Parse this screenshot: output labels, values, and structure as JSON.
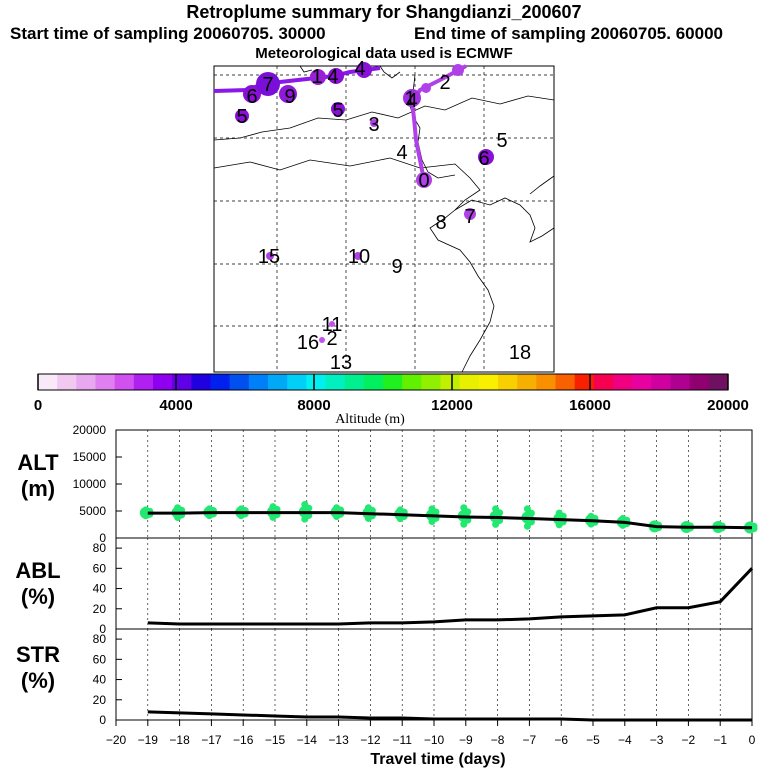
{
  "header": {
    "title": "Retroplume summary for Shangdianzi_200607",
    "start": "Start time of sampling 20060705. 30000",
    "end": "End time of sampling 20060705. 60000",
    "met": "Meteorological data used is ECMWF"
  },
  "colorbar": {
    "ticks": [
      "0",
      "4000",
      "8000",
      "12000",
      "16000",
      "20000"
    ],
    "label": "Altitude (m)",
    "colors": [
      "#f8e8f8",
      "#f0c8f0",
      "#e8a8f0",
      "#e080f0",
      "#d050f0",
      "#b020f0",
      "#9000f0",
      "#6000e8",
      "#2000e0",
      "#0020f0",
      "#0050f0",
      "#0080f8",
      "#00a8f8",
      "#00d0f8",
      "#00f0f0",
      "#00f0c0",
      "#00f090",
      "#00f060",
      "#20f020",
      "#60f000",
      "#90f000",
      "#c0f000",
      "#e8f000",
      "#f8f000",
      "#f8d000",
      "#f8b000",
      "#f89000",
      "#f86000",
      "#f82000",
      "#f80050",
      "#f00080",
      "#e800a0",
      "#d000a0",
      "#b00090",
      "#900070",
      "#701060"
    ]
  },
  "map": {
    "labels": [
      {
        "t": "5",
        "x": 242,
        "y": 116
      },
      {
        "t": "6",
        "x": 252,
        "y": 96
      },
      {
        "t": "7",
        "x": 268,
        "y": 84
      },
      {
        "t": "9",
        "x": 290,
        "y": 96
      },
      {
        "t": "1",
        "x": 317,
        "y": 76
      },
      {
        "t": "4",
        "x": 333,
        "y": 76
      },
      {
        "t": "5",
        "x": 338,
        "y": 110
      },
      {
        "t": "3",
        "x": 374,
        "y": 124
      },
      {
        "t": "4",
        "x": 360,
        "y": 68
      },
      {
        "t": "1",
        "x": 410,
        "y": 98
      },
      {
        "t": "4",
        "x": 412,
        "y": 100
      },
      {
        "t": "2",
        "x": 445,
        "y": 82
      },
      {
        "t": "4",
        "x": 402,
        "y": 152
      },
      {
        "t": "0",
        "x": 424,
        "y": 180
      },
      {
        "t": "5",
        "x": 502,
        "y": 140
      },
      {
        "t": "6",
        "x": 484,
        "y": 158
      },
      {
        "t": "7",
        "x": 470,
        "y": 216
      },
      {
        "t": "8",
        "x": 441,
        "y": 222
      },
      {
        "t": "15",
        "x": 269,
        "y": 256
      },
      {
        "t": "10",
        "x": 359,
        "y": 256
      },
      {
        "t": "9",
        "x": 397,
        "y": 266
      },
      {
        "t": "11",
        "x": 332,
        "y": 324
      },
      {
        "t": "16",
        "x": 308,
        "y": 342
      },
      {
        "t": "2",
        "x": 332,
        "y": 338
      },
      {
        "t": "13",
        "x": 341,
        "y": 362
      },
      {
        "t": "18",
        "x": 520,
        "y": 352
      }
    ]
  },
  "panels": {
    "alt": {
      "label1": "ALT",
      "label2": "(m)",
      "yticks": [
        "20000",
        "15000",
        "10000",
        "5000",
        "0"
      ]
    },
    "abl": {
      "label1": "ABL",
      "label2": "(%)",
      "yticks": [
        "80",
        "60",
        "40",
        "20",
        "0"
      ]
    },
    "str": {
      "label1": "STR",
      "label2": "(%)",
      "yticks": [
        "80",
        "60",
        "40",
        "20",
        "0"
      ]
    }
  },
  "xaxis": {
    "ticks": [
      "−20",
      "−19",
      "−18",
      "−17",
      "−16",
      "−15",
      "−14",
      "−13",
      "−12",
      "−11",
      "−10",
      "−9",
      "−8",
      "−7",
      "−6",
      "−5",
      "−4",
      "−3",
      "−2",
      "−1",
      "0"
    ],
    "label": "Travel time (days)"
  },
  "chart_data": {
    "type": "line",
    "title": "Retroplume summary for Shangdianzi_200607",
    "xlabel": "Travel time (days)",
    "x": [
      -19,
      -18,
      -17,
      -16,
      -15,
      -14,
      -13,
      -12,
      -11,
      -10,
      -9,
      -8,
      -7,
      -6,
      -5,
      -4,
      -3,
      -2,
      -1,
      0
    ],
    "xlim": [
      -20,
      0
    ],
    "series": [
      {
        "name": "ALT (m)",
        "ylim": [
          0,
          20000
        ],
        "values": [
          4600,
          4600,
          4700,
          4700,
          4700,
          4700,
          4700,
          4500,
          4300,
          4100,
          3900,
          3800,
          3600,
          3400,
          3200,
          2900,
          2100,
          2000,
          2000,
          1900
        ],
        "spread": [
          5200,
          5600,
          5400,
          5400,
          5800,
          6200,
          5600,
          5600,
          5200,
          5400,
          5600,
          5400,
          5400,
          4600,
          4000,
          3600,
          2600,
          2400,
          2400,
          2400
        ]
      },
      {
        "name": "ABL (%)",
        "ylim": [
          0,
          90
        ],
        "values": [
          6,
          5,
          5,
          5,
          5,
          5,
          5,
          6,
          6,
          7,
          9,
          9,
          10,
          12,
          13,
          14,
          21,
          21,
          27,
          60
        ]
      },
      {
        "name": "STR (%)",
        "ylim": [
          0,
          90
        ],
        "values": [
          8,
          7,
          6,
          5,
          4,
          3,
          3,
          2,
          2,
          1,
          1,
          1,
          1,
          1,
          0,
          0,
          0,
          0,
          0,
          0
        ]
      }
    ]
  }
}
